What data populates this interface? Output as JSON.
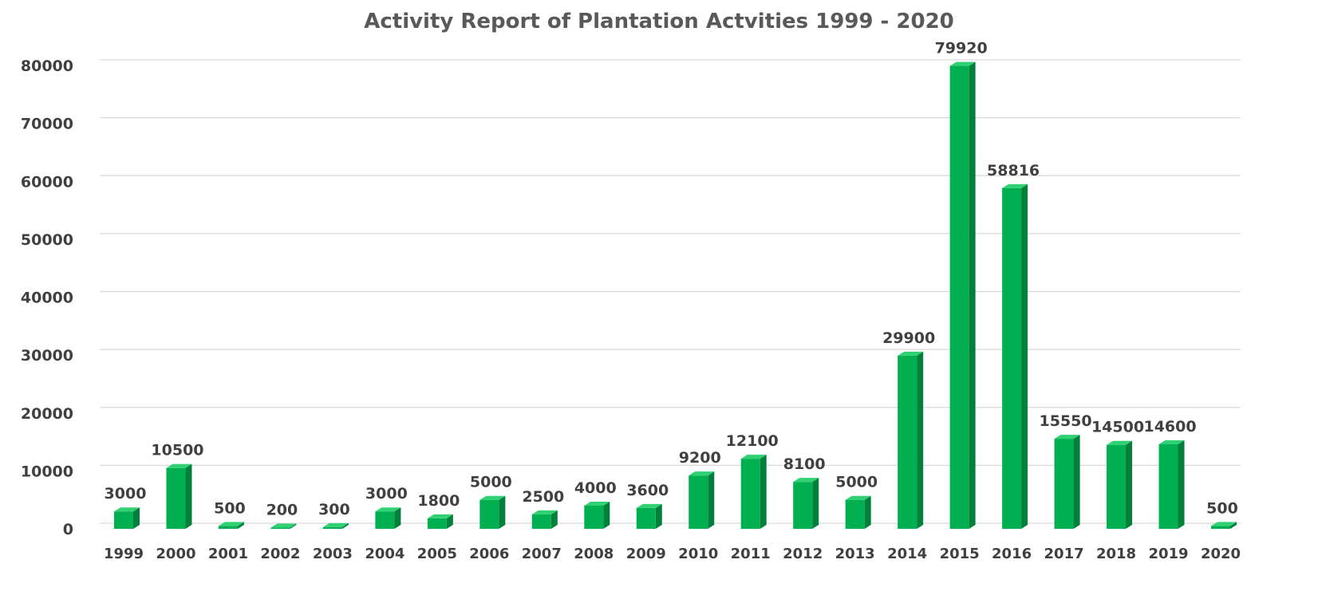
{
  "chart_data": {
    "type": "bar",
    "title": "Activity Report of Plantation Actvities 1999 - 2020",
    "xlabel": "",
    "ylabel": "",
    "categories": [
      "1999",
      "2000",
      "2001",
      "2002",
      "2003",
      "2004",
      "2005",
      "2006",
      "2007",
      "2008",
      "2009",
      "2010",
      "2011",
      "2012",
      "2013",
      "2014",
      "2015",
      "2016",
      "2017",
      "2018",
      "2019",
      "2020"
    ],
    "values": [
      3000,
      10500,
      500,
      200,
      300,
      3000,
      1800,
      5000,
      2500,
      4000,
      3600,
      9200,
      12100,
      8100,
      5000,
      29900,
      79920,
      58816,
      15550,
      14500,
      14600,
      500
    ],
    "data_labels": [
      "3000",
      "10500",
      "500",
      "200",
      "300",
      "3000",
      "1800",
      "5000",
      "2500",
      "4000",
      "3600",
      "9200",
      "12100",
      "8100",
      "5000",
      "29900",
      "79920",
      "58816",
      "15550",
      "14500",
      "14600",
      "500"
    ],
    "y_ticks": [
      "0",
      "10000",
      "20000",
      "30000",
      "40000",
      "50000",
      "60000",
      "70000",
      "80000"
    ],
    "ylim": [
      0,
      80000
    ],
    "grid": true,
    "legend": "none",
    "colors": {
      "bar_front": "#00b050",
      "bar_side": "#00803a",
      "bar_top": "#2fd172",
      "grid": "#d9d9d9"
    }
  }
}
